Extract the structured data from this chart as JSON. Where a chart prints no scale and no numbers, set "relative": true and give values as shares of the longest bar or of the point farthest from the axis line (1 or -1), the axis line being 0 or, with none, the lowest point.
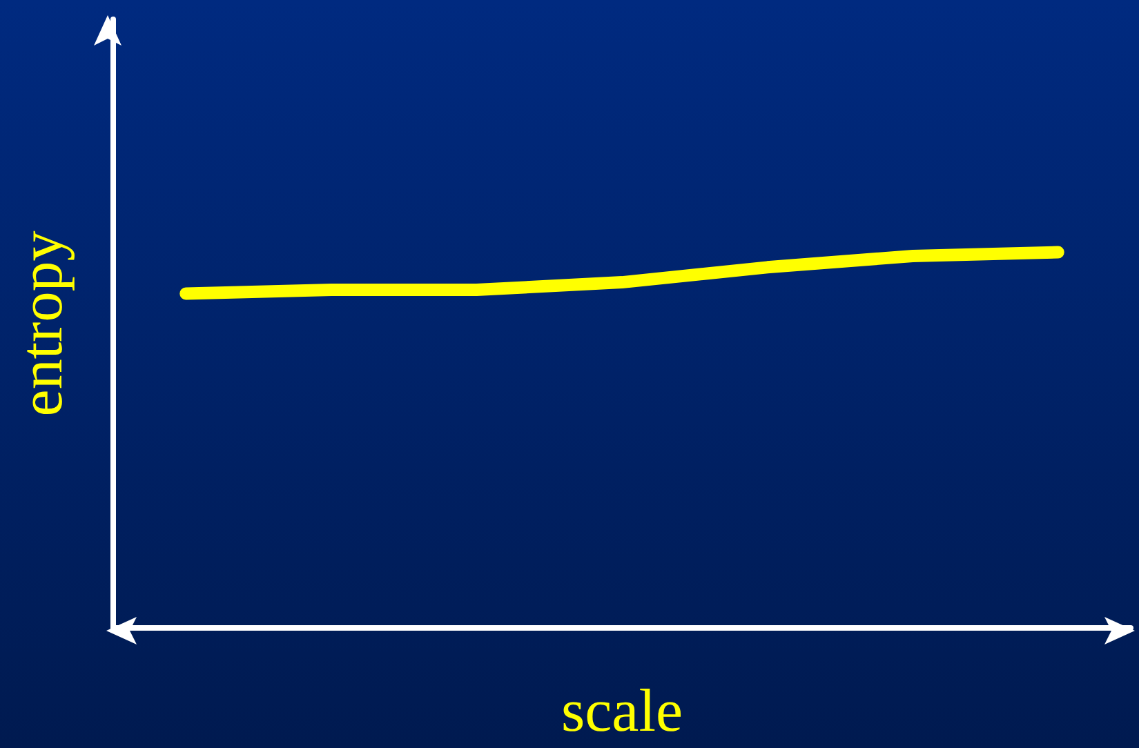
{
  "chart_data": {
    "type": "line",
    "relative": true,
    "xlabel": "scale",
    "ylabel": "entropy",
    "categories": [
      null,
      null,
      null,
      null,
      null,
      null,
      null
    ],
    "series": [
      {
        "color": "#ffff00",
        "values": [
          0.89,
          0.9,
          0.9,
          0.92,
          0.96,
          0.99,
          1
        ]
      }
    ],
    "grid": false,
    "line_style": "solid"
  }
}
